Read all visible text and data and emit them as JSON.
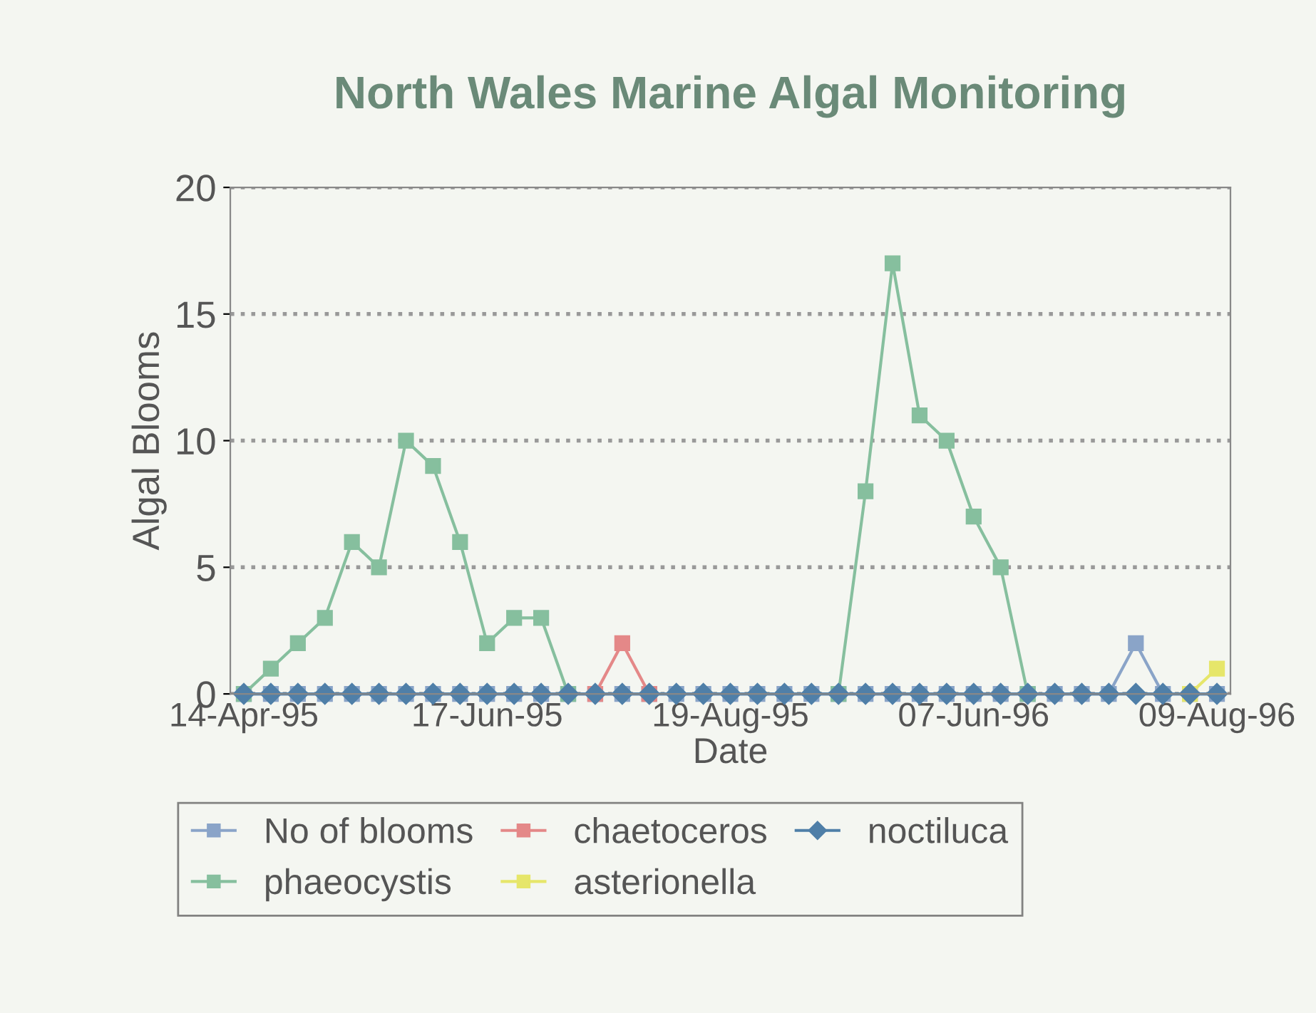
{
  "chart_data": {
    "type": "line",
    "title": "North Wales Marine Algal Monitoring",
    "xlabel": "Date",
    "ylabel": "Algal Blooms",
    "categories": [
      "14-Apr-95",
      null,
      null,
      null,
      null,
      null,
      null,
      null,
      null,
      "17-Jun-95",
      null,
      null,
      null,
      null,
      null,
      null,
      null,
      null,
      "19-Aug-95",
      null,
      null,
      null,
      null,
      null,
      null,
      null,
      null,
      "07-Jun-96",
      null,
      null,
      null,
      null,
      null,
      null,
      null,
      null,
      "09-Aug-96"
    ],
    "ylim": [
      0,
      20
    ],
    "yticks": [
      0,
      5,
      10,
      15,
      20
    ],
    "grid": "y",
    "line_style": "solid",
    "legend": "bottom",
    "series": [
      {
        "name": "No of blooms",
        "color": "#8aa4c8",
        "marker": "square",
        "values": [
          0,
          0,
          0,
          0,
          0,
          0,
          0,
          0,
          0,
          0,
          0,
          0,
          0,
          0,
          0,
          0,
          0,
          0,
          0,
          0,
          0,
          0,
          0,
          0,
          0,
          0,
          0,
          0,
          0,
          0,
          0,
          0,
          0,
          2,
          0,
          0,
          0
        ]
      },
      {
        "name": "phaeocystis",
        "color": "#86bf9e",
        "marker": "square",
        "values": [
          0,
          1,
          2,
          3,
          6,
          5,
          10,
          9,
          6,
          2,
          3,
          3,
          0,
          null,
          null,
          null,
          null,
          null,
          null,
          null,
          null,
          null,
          0,
          8,
          17,
          11,
          10,
          7,
          5,
          0,
          null,
          null,
          null,
          null,
          null,
          null,
          null
        ]
      },
      {
        "name": "chaetoceros",
        "color": "#e48888",
        "marker": "square",
        "values": [
          null,
          null,
          null,
          null,
          null,
          null,
          null,
          null,
          null,
          null,
          null,
          null,
          null,
          0,
          2,
          0,
          null,
          null,
          null,
          null,
          null,
          null,
          null,
          null,
          null,
          null,
          null,
          null,
          null,
          null,
          null,
          null,
          null,
          null,
          null,
          null,
          null
        ]
      },
      {
        "name": "asterionella",
        "color": "#e6e66a",
        "marker": "square",
        "values": [
          null,
          null,
          null,
          null,
          null,
          null,
          null,
          null,
          null,
          null,
          null,
          null,
          null,
          null,
          null,
          null,
          null,
          null,
          null,
          null,
          null,
          null,
          null,
          null,
          null,
          null,
          null,
          null,
          null,
          null,
          null,
          null,
          null,
          null,
          null,
          0,
          1
        ]
      },
      {
        "name": "noctiluca",
        "color": "#4f7fa8",
        "marker": "diamond",
        "values": [
          0,
          0,
          0,
          0,
          0,
          0,
          0,
          0,
          0,
          0,
          0,
          0,
          0,
          0,
          0,
          0,
          0,
          0,
          0,
          0,
          0,
          0,
          0,
          0,
          0,
          0,
          0,
          0,
          0,
          0,
          0,
          0,
          0,
          0,
          0,
          0,
          0
        ]
      }
    ]
  }
}
